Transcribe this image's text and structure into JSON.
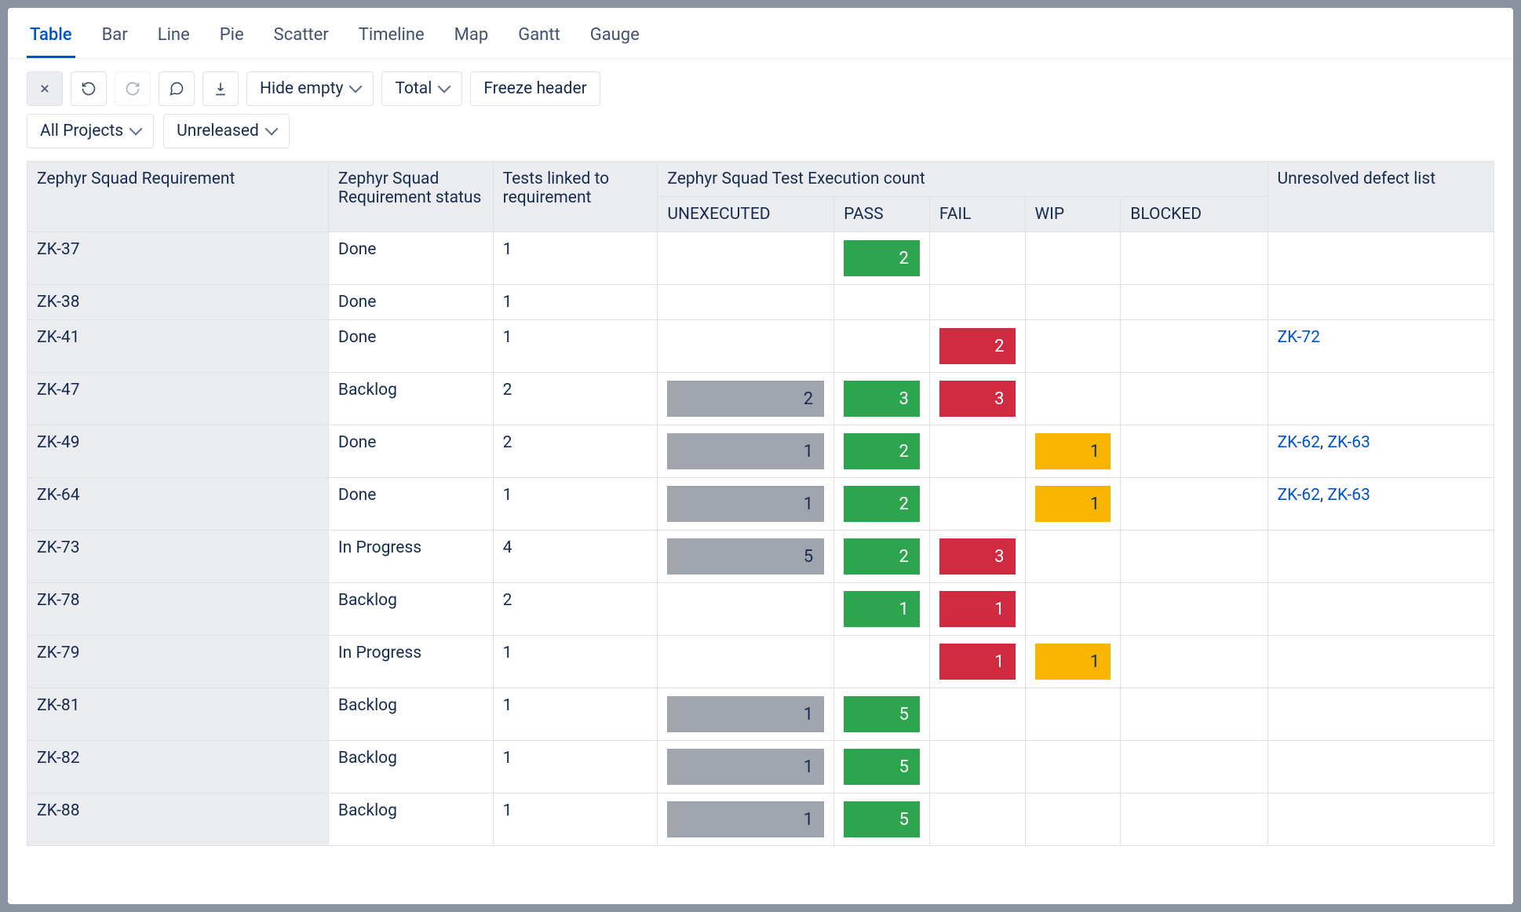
{
  "tabs": [
    "Table",
    "Bar",
    "Line",
    "Pie",
    "Scatter",
    "Timeline",
    "Map",
    "Gantt",
    "Gauge"
  ],
  "active_tab": 0,
  "toolbar": {
    "hide_empty": "Hide empty",
    "total": "Total",
    "freeze_header": "Freeze header"
  },
  "filters": {
    "projects": "All Projects",
    "release": "Unreleased"
  },
  "colors": {
    "unexecuted": "#a0a5ad",
    "pass": "#2da44e",
    "fail": "#cf2a3f",
    "wip": "#f7b500",
    "blocked": "#6b778c",
    "header_bg": "#ebecf0",
    "border": "#dfe1e6",
    "link": "#0052cc"
  },
  "headers": {
    "req": "Zephyr Squad Requirement",
    "req_status": "Zephyr Squad Requirement status",
    "linked": "Tests linked to requirement",
    "exec": "Zephyr Squad Test Execution count",
    "defects": "Unresolved defect list",
    "sub": {
      "unex": "UNEXECUTED",
      "pass": "PASS",
      "fail": "FAIL",
      "wip": "WIP",
      "block": "BLOCKED"
    }
  },
  "rows": [
    {
      "id": "ZK-37",
      "status": "Done",
      "linked": 1,
      "unex": null,
      "pass": 2,
      "fail": null,
      "wip": null,
      "block": null,
      "defects": []
    },
    {
      "id": "ZK-38",
      "status": "Done",
      "linked": 1,
      "unex": null,
      "pass": null,
      "fail": null,
      "wip": null,
      "block": null,
      "defects": []
    },
    {
      "id": "ZK-41",
      "status": "Done",
      "linked": 1,
      "unex": null,
      "pass": null,
      "fail": 2,
      "wip": null,
      "block": null,
      "defects": [
        "ZK-72"
      ]
    },
    {
      "id": "ZK-47",
      "status": "Backlog",
      "linked": 2,
      "unex": 2,
      "pass": 3,
      "fail": 3,
      "wip": null,
      "block": null,
      "defects": []
    },
    {
      "id": "ZK-49",
      "status": "Done",
      "linked": 2,
      "unex": 1,
      "pass": 2,
      "fail": null,
      "wip": 1,
      "block": null,
      "defects": [
        "ZK-62",
        "ZK-63"
      ]
    },
    {
      "id": "ZK-64",
      "status": "Done",
      "linked": 1,
      "unex": 1,
      "pass": 2,
      "fail": null,
      "wip": 1,
      "block": null,
      "defects": [
        "ZK-62",
        "ZK-63"
      ]
    },
    {
      "id": "ZK-73",
      "status": "In Progress",
      "linked": 4,
      "unex": 5,
      "pass": 2,
      "fail": 3,
      "wip": null,
      "block": null,
      "defects": []
    },
    {
      "id": "ZK-78",
      "status": "Backlog",
      "linked": 2,
      "unex": null,
      "pass": 1,
      "fail": 1,
      "wip": null,
      "block": null,
      "defects": []
    },
    {
      "id": "ZK-79",
      "status": "In Progress",
      "linked": 1,
      "unex": null,
      "pass": null,
      "fail": 1,
      "wip": 1,
      "block": null,
      "defects": []
    },
    {
      "id": "ZK-81",
      "status": "Backlog",
      "linked": 1,
      "unex": 1,
      "pass": 5,
      "fail": null,
      "wip": null,
      "block": null,
      "defects": []
    },
    {
      "id": "ZK-82",
      "status": "Backlog",
      "linked": 1,
      "unex": 1,
      "pass": 5,
      "fail": null,
      "wip": null,
      "block": null,
      "defects": []
    },
    {
      "id": "ZK-88",
      "status": "Backlog",
      "linked": 1,
      "unex": 1,
      "pass": 5,
      "fail": null,
      "wip": null,
      "block": null,
      "defects": []
    }
  ]
}
